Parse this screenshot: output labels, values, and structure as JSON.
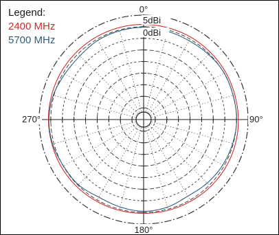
{
  "chart_data": {
    "type": "polar-line",
    "legend": {
      "title": "Legend:",
      "placement": "top-left"
    },
    "angle_labels": [
      "0°",
      "90°",
      "180°",
      "270°"
    ],
    "radial_axis": {
      "ring_labels": [
        "5dBi",
        "0dBi"
      ],
      "min_dbi": -40,
      "max_dbi": 5,
      "ring_step_dbi": 5
    },
    "grid": true,
    "series": [
      {
        "name": "2400 MHz",
        "color": "#d22a2a",
        "angles_deg": [
          0,
          15,
          30,
          45,
          60,
          75,
          90,
          105,
          120,
          135,
          150,
          165,
          180,
          195,
          210,
          225,
          240,
          255,
          270,
          285,
          300,
          315,
          330,
          345
        ],
        "gain_dbi": [
          1.0,
          0.9,
          0.9,
          0.8,
          0.8,
          0.7,
          0.8,
          0.9,
          0.9,
          0.8,
          0.6,
          0.5,
          0.4,
          0.5,
          0.6,
          0.8,
          0.9,
          0.9,
          1.0,
          1.0,
          1.0,
          1.0,
          1.0,
          1.0
        ]
      },
      {
        "name": "5700 MHz",
        "color": "#2f5d80",
        "angles_deg": [
          0,
          15,
          30,
          45,
          60,
          75,
          90,
          105,
          120,
          135,
          150,
          165,
          180,
          195,
          210,
          225,
          240,
          255,
          270,
          285,
          300,
          315,
          330,
          345
        ],
        "gain_dbi": [
          -0.3,
          -0.6,
          -0.8,
          -0.4,
          0.1,
          -0.1,
          0.1,
          -0.3,
          -0.7,
          -1.3,
          -1.9,
          -0.9,
          -0.5,
          -1.0,
          -1.4,
          -0.3,
          -0.1,
          0.6,
          0.8,
          0.3,
          -0.8,
          -1.2,
          -0.6,
          -0.4
        ]
      }
    ]
  }
}
